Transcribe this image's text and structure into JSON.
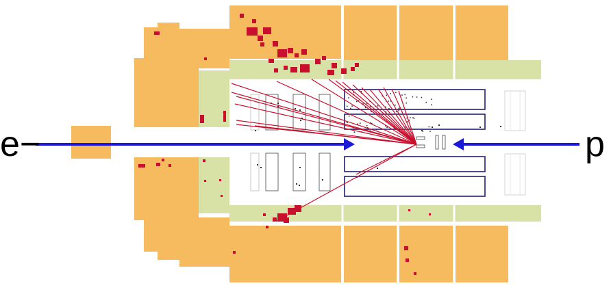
{
  "labels": {
    "electron": "e−",
    "proton": "p"
  },
  "colors": {
    "calorimeter": "#f7bb5f",
    "hadronic_inner": "#d8e2a6",
    "hit": "#c8102e",
    "track": "#c8102e",
    "beam_arrow": "#1b18d6",
    "tracker_outline": "#22206e",
    "detector_line": "#333333"
  },
  "icons": {
    "electron_beam": "arrow-right-icon",
    "proton_beam": "arrow-left-icon"
  }
}
